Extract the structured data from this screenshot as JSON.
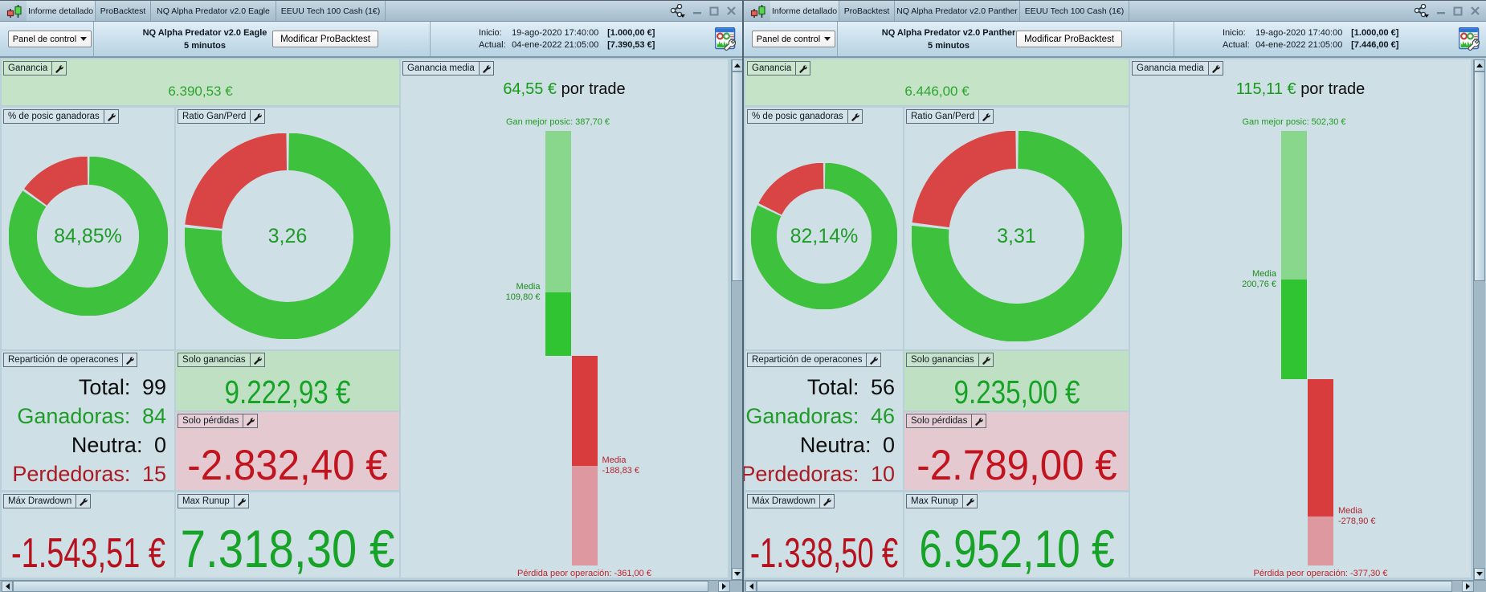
{
  "colors": {
    "donut_green": "#3ec23e",
    "donut_red": "#d94545",
    "donut_gap": "#eef3f1",
    "bar_light_green": "#88d78c",
    "bar_green": "#30c433",
    "bar_red": "#d83c3c",
    "bar_light_red": "#de98a0",
    "positive_text": "#17a327",
    "negative_text": "#b5121e"
  },
  "windows": [
    {
      "titlebar": {
        "tabs": [
          "Informe detallado",
          "ProBacktest",
          "NQ Alpha Predator v2.0 Eagle",
          "EEUU Tech 100 Cash (1€)"
        ]
      },
      "toolbar": {
        "panel_control": "Panel de control",
        "strategy_name": "NQ Alpha Predator v2.0 Eagle",
        "timeframe": "5 minutos",
        "modify_button": "Modificar ProBacktest",
        "inicio_label": "Inicio:",
        "inicio_datetime": "19-ago-2020 17:40:00",
        "inicio_amount": "[1.000,00 €]",
        "actual_label": "Actual:",
        "actual_datetime": "04-ene-2022 21:05:00",
        "actual_amount": "[7.390,53 €]"
      },
      "ganancia": {
        "label": "Ganancia",
        "value": "6.390,53 €"
      },
      "pct": {
        "label": "% de posic ganadoras",
        "value": "84,85%",
        "number": 84.85,
        "type": "percent"
      },
      "ratio": {
        "label": "Ratio Gan/Perd",
        "value": "3,26",
        "number": 3.26,
        "type": "ratio"
      },
      "repartition": {
        "label": "Repartición de operacones",
        "rows": [
          {
            "k": "Total:",
            "v": "99"
          },
          {
            "k": "Ganadoras:",
            "v": "84"
          },
          {
            "k": "Neutra:",
            "v": "0"
          },
          {
            "k": "Perdedoras:",
            "v": "15"
          }
        ]
      },
      "solo_ganancias": {
        "label": "Solo ganancias",
        "value": "9.222,93 €"
      },
      "solo_perdidas": {
        "label": "Solo pérdidas",
        "value": "-2.832,40 €"
      },
      "drawdown": {
        "label": "Máx Drawdown",
        "value": "-1.543,51 €"
      },
      "runup": {
        "label": "Max Runup",
        "value": "7.318,30 €"
      },
      "media": {
        "label": "Ganancia media",
        "header_value": "64,55 €",
        "header_suffix": "por trade",
        "best_label": "Gan mejor posic: 387,70 €",
        "media_word_win": "Media",
        "avg_win_label": "109,80 €",
        "media_word_loss": "Media",
        "avg_loss_label": "-188,83 €",
        "worst_label": "Pérdida peor operación: -361,00 €",
        "chart": {
          "type": "bar",
          "best": 387.7,
          "avg_win": 109.8,
          "avg_loss": -188.83,
          "worst": -361.0
        }
      }
    },
    {
      "titlebar": {
        "tabs": [
          "Informe detallado",
          "ProBacktest",
          "NQ Alpha Predator v2.0 Panther",
          "EEUU Tech 100 Cash (1€)"
        ]
      },
      "toolbar": {
        "panel_control": "Panel de control",
        "strategy_name": "NQ Alpha Predator v2.0 Panther",
        "timeframe": "5 minutos",
        "modify_button": "Modificar ProBacktest",
        "inicio_label": "Inicio:",
        "inicio_datetime": "19-ago-2020 17:40:00",
        "inicio_amount": "[1.000,00 €]",
        "actual_label": "Actual:",
        "actual_datetime": "04-ene-2022 21:05:00",
        "actual_amount": "[7.446,00 €]"
      },
      "ganancia": {
        "label": "Ganancia",
        "value": "6.446,00 €"
      },
      "pct": {
        "label": "% de posic ganadoras",
        "value": "82,14%",
        "number": 82.14,
        "type": "percent"
      },
      "ratio": {
        "label": "Ratio Gan/Perd",
        "value": "3,31",
        "number": 3.31,
        "type": "ratio"
      },
      "repartition": {
        "label": "Repartición de operacones",
        "rows": [
          {
            "k": "Total:",
            "v": "56"
          },
          {
            "k": "Ganadoras:",
            "v": "46"
          },
          {
            "k": "Neutra:",
            "v": "0"
          },
          {
            "k": "Perdedoras:",
            "v": "10"
          }
        ]
      },
      "solo_ganancias": {
        "label": "Solo ganancias",
        "value": "9.235,00 €"
      },
      "solo_perdidas": {
        "label": "Solo pérdidas",
        "value": "-2.789,00 €"
      },
      "drawdown": {
        "label": "Máx Drawdown",
        "value": "-1.338,50 €"
      },
      "runup": {
        "label": "Max Runup",
        "value": "6.952,10 €"
      },
      "media": {
        "label": "Ganancia media",
        "header_value": "115,11 €",
        "header_suffix": "por trade",
        "best_label": "Gan mejor posic: 502,30 €",
        "media_word_win": "Media",
        "avg_win_label": "200,76 €",
        "media_word_loss": "Media",
        "avg_loss_label": "-278,90 €",
        "worst_label": "Pérdida peor operación: -377,30 €",
        "chart": {
          "type": "bar",
          "best": 502.3,
          "avg_win": 200.76,
          "avg_loss": -278.9,
          "worst": -377.3
        }
      }
    }
  ],
  "chart_data": [
    {
      "type": "pie",
      "title": "% de posic ganadoras (Eagle)",
      "labels": [
        "Ganadoras",
        "Perdedoras"
      ],
      "values": [
        84.85,
        15.15
      ]
    },
    {
      "type": "pie",
      "title": "Ratio Gan/Perd (Eagle)",
      "labels": [
        "Gan",
        "Perd"
      ],
      "values": [
        3.26,
        1
      ]
    },
    {
      "type": "bar",
      "title": "Ganancia media (Eagle)",
      "categories": [
        "Gan mejor posic",
        "Media ganancia",
        "Media pérdida",
        "Pérdida peor operación"
      ],
      "values": [
        387.7,
        109.8,
        -188.83,
        -361.0
      ]
    },
    {
      "type": "pie",
      "title": "% de posic ganadoras (Panther)",
      "labels": [
        "Ganadoras",
        "Perdedoras"
      ],
      "values": [
        82.14,
        17.86
      ]
    },
    {
      "type": "pie",
      "title": "Ratio Gan/Perd (Panther)",
      "labels": [
        "Gan",
        "Perd"
      ],
      "values": [
        3.31,
        1
      ]
    },
    {
      "type": "bar",
      "title": "Ganancia media (Panther)",
      "categories": [
        "Gan mejor posic",
        "Media ganancia",
        "Media pérdida",
        "Pérdida peor operación"
      ],
      "values": [
        502.3,
        200.76,
        -278.9,
        -377.3
      ]
    }
  ]
}
